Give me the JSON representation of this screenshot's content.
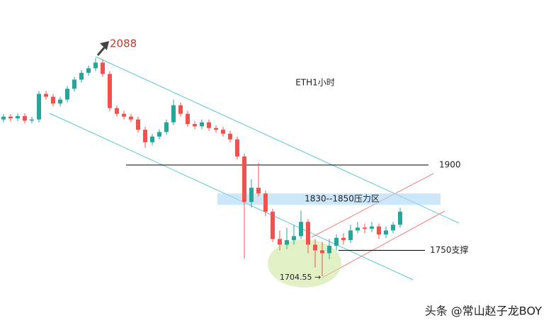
{
  "chart_data": {
    "type": "candlestick",
    "title": "ETH1小时",
    "up_color": "#26a69a",
    "down_color": "#ef5350",
    "ylim": [
      1610,
      2190
    ],
    "open": [
      1980,
      1985,
      1982,
      1986,
      1978,
      1980,
      2025,
      2020,
      2008,
      2015,
      2034,
      2050,
      2062,
      2070,
      2080,
      2060,
      2000,
      1990,
      1985,
      1980,
      1962,
      1940,
      1950,
      1958,
      1975,
      2005,
      1990,
      1972,
      1968,
      1975,
      1965,
      1962,
      1955,
      1945,
      1915,
      1835,
      1860,
      1850,
      1818,
      1770,
      1760,
      1768,
      1775,
      1800,
      1760,
      1750,
      1745,
      1758,
      1772,
      1768,
      1785,
      1790,
      1788,
      1792,
      1778,
      1785,
      1795
    ],
    "high": [
      1990,
      1990,
      1991,
      1991,
      1985,
      2030,
      2030,
      2025,
      2020,
      2039,
      2055,
      2067,
      2075,
      2088,
      2085,
      2065,
      2005,
      1995,
      1990,
      1985,
      1967,
      1955,
      1963,
      1980,
      2015,
      2010,
      1995,
      1977,
      1980,
      1980,
      1970,
      1967,
      1960,
      1950,
      1920,
      1875,
      1904,
      1855,
      1823,
      1785,
      1790,
      1795,
      1820,
      1805,
      1770,
      1765,
      1770,
      1778,
      1780,
      1795,
      1800,
      1797,
      1800,
      1797,
      1792,
      1800,
      1825
    ],
    "low": [
      1975,
      1977,
      1977,
      1973,
      1973,
      1975,
      2015,
      2003,
      2003,
      2010,
      2029,
      2045,
      2057,
      2065,
      2055,
      1995,
      1985,
      1980,
      1975,
      1957,
      1930,
      1935,
      1945,
      1953,
      1970,
      1985,
      1967,
      1963,
      1963,
      1960,
      1957,
      1950,
      1940,
      1910,
      1736,
      1825,
      1845,
      1810,
      1765,
      1750,
      1752,
      1760,
      1770,
      1745,
      1720,
      1704.55,
      1735,
      1750,
      1760,
      1763,
      1780,
      1780,
      1782,
      1770,
      1772,
      1780,
      1790
    ],
    "close": [
      1985,
      1982,
      1986,
      1978,
      1980,
      2025,
      2020,
      2008,
      2015,
      2034,
      2050,
      2062,
      2070,
      2080,
      2060,
      2000,
      1990,
      1985,
      1980,
      1962,
      1940,
      1950,
      1958,
      1975,
      2005,
      1990,
      1972,
      1968,
      1975,
      1965,
      1962,
      1955,
      1945,
      1915,
      1835,
      1860,
      1850,
      1818,
      1770,
      1760,
      1768,
      1775,
      1800,
      1760,
      1750,
      1745,
      1758,
      1772,
      1768,
      1785,
      1790,
      1788,
      1792,
      1778,
      1785,
      1795,
      1818
    ],
    "high_label": 2088,
    "low_label": {
      "value": 1704.55,
      "label": "1704.55 →"
    },
    "resistance": {
      "value": 1900,
      "label": "1900"
    },
    "support": {
      "value": 1750,
      "label": "1750支撑"
    },
    "zone": {
      "range": [
        1830,
        1850
      ],
      "label": "1830--1850压力区"
    },
    "watermark": "头条 @常山赵子龙BOY"
  }
}
